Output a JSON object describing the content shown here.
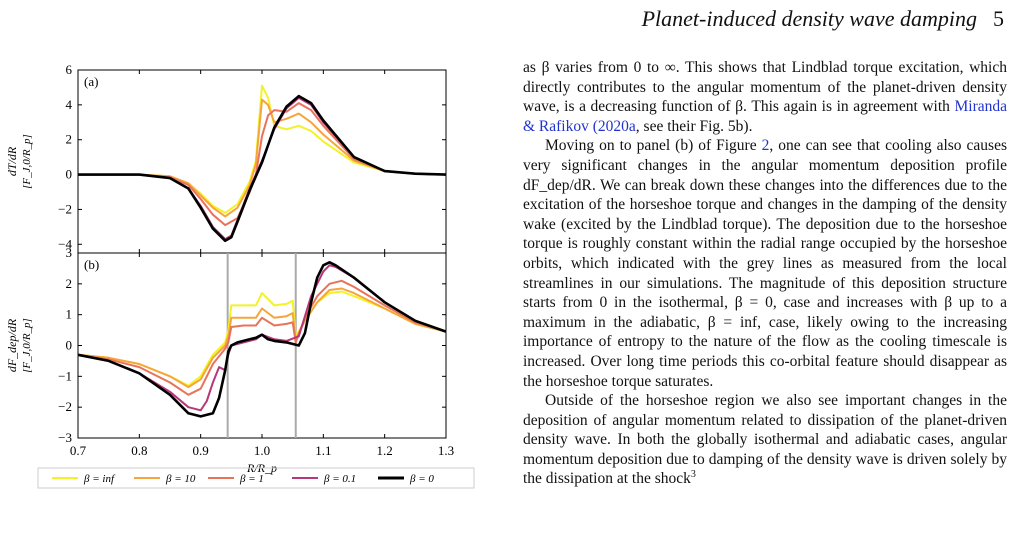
{
  "header": {
    "title": "Planet-induced density wave damping",
    "page": "5"
  },
  "body": {
    "p1": "as β varies from 0 to ∞. This shows that Lindblad torque excitation, which directly contributes to the angular momentum of the planet-driven density wave, is a decreasing function of β. This again is in agreement with ",
    "p1_link": "Miranda & Rafikov (2020a",
    "p1_end": ", see their Fig. 5b).",
    "p2_start": "Moving on to panel (b) of Figure ",
    "p2_link": "2",
    "p2": ", one can see that cooling also causes very significant changes in the angular momentum deposition profile dF_dep/dR. We can break down these changes into the differences due to the excitation of the horseshoe torque and changes in the damping of the density wake (excited by the Lindblad torque). The deposition due to the horseshoe torque is roughly constant within the radial range occupied by the horseshoe orbits, which indicated with the grey lines as measured from the local streamlines in our simulations. The magnitude of this deposition structure starts from 0 in the isothermal, β = 0, case and increases with β up to a maximum in the adiabatic, β = inf, case, likely owing to the increasing importance of entropy to the nature of the flow as the cooling timescale is increased. Over long time periods this co-orbital feature should disappear as the horseshoe torque saturates.",
    "p3": "Outside of the horseshoe region we also see important changes in the deposition of angular momentum related to dissipation of the planet-driven density wave. In both the globally isothermal and adiabatic cases, angular momentum deposition due to damping of the density wave is driven solely by the dissipation at the shock",
    "p3_sup": "3"
  },
  "chart_data": [
    {
      "type": "line",
      "panel_label": "(a)",
      "ylabel_top": "dT/dR",
      "ylabel_bottom": "[F_J,0/R_p]",
      "xlim": [
        0.7,
        1.3
      ],
      "ylim": [
        -4.5,
        6
      ],
      "yticks": [
        "6",
        "4",
        "2",
        "0",
        "−2",
        "−4"
      ],
      "series": [
        {
          "name": "β = inf",
          "color": "#f2f226",
          "x": [
            0.7,
            0.8,
            0.85,
            0.88,
            0.9,
            0.92,
            0.94,
            0.96,
            0.98,
            0.99,
            1.0,
            1.01,
            1.02,
            1.04,
            1.06,
            1.08,
            1.1,
            1.15,
            1.2,
            1.25,
            1.3
          ],
          "y": [
            0,
            0,
            -0.1,
            -0.5,
            -1.1,
            -1.8,
            -2.2,
            -1.7,
            -0.4,
            0.8,
            5.1,
            4.4,
            2.8,
            2.6,
            2.8,
            2.5,
            1.9,
            0.7,
            0.2,
            0.05,
            0
          ]
        },
        {
          "name": "β = 10",
          "color": "#f5a53c",
          "x": [
            0.7,
            0.8,
            0.85,
            0.88,
            0.9,
            0.92,
            0.94,
            0.96,
            0.98,
            0.99,
            1.0,
            1.01,
            1.02,
            1.04,
            1.06,
            1.08,
            1.1,
            1.15,
            1.2,
            1.25,
            1.3
          ],
          "y": [
            0,
            0,
            -0.1,
            -0.5,
            -1.2,
            -1.9,
            -2.4,
            -1.9,
            -0.6,
            0.6,
            4.3,
            4.0,
            3.0,
            3.2,
            3.5,
            3.0,
            2.3,
            0.8,
            0.2,
            0.05,
            0
          ]
        },
        {
          "name": "β = 1",
          "color": "#e8735a",
          "x": [
            0.7,
            0.8,
            0.85,
            0.88,
            0.9,
            0.92,
            0.94,
            0.96,
            0.98,
            0.99,
            1.0,
            1.01,
            1.02,
            1.04,
            1.06,
            1.08,
            1.1,
            1.15,
            1.2,
            1.25,
            1.3
          ],
          "y": [
            0,
            0,
            -0.15,
            -0.6,
            -1.4,
            -2.3,
            -2.9,
            -2.5,
            -1.0,
            0.0,
            2.2,
            3.4,
            3.7,
            3.6,
            4.1,
            3.7,
            2.8,
            0.9,
            0.2,
            0.05,
            0
          ]
        },
        {
          "name": "β = 0.1",
          "color": "#b73779",
          "x": [
            0.7,
            0.8,
            0.85,
            0.88,
            0.9,
            0.92,
            0.94,
            0.95,
            0.96,
            0.98,
            1.0,
            1.02,
            1.04,
            1.06,
            1.08,
            1.1,
            1.15,
            1.2,
            1.25,
            1.3
          ],
          "y": [
            0,
            0,
            -0.2,
            -0.8,
            -1.8,
            -3.0,
            -3.7,
            -3.5,
            -2.6,
            -0.8,
            0.8,
            2.6,
            3.8,
            4.4,
            4.0,
            3.0,
            1.0,
            0.2,
            0.05,
            0
          ]
        },
        {
          "name": "β = 0",
          "color": "#000000",
          "x": [
            0.7,
            0.8,
            0.85,
            0.88,
            0.9,
            0.92,
            0.94,
            0.95,
            0.96,
            0.98,
            1.0,
            1.02,
            1.04,
            1.06,
            1.08,
            1.1,
            1.15,
            1.2,
            1.25,
            1.3
          ],
          "y": [
            0,
            0,
            -0.2,
            -0.8,
            -1.9,
            -3.1,
            -3.8,
            -3.6,
            -2.7,
            -0.9,
            0.7,
            2.7,
            3.9,
            4.5,
            4.1,
            3.1,
            1.0,
            0.2,
            0.05,
            0
          ]
        }
      ]
    },
    {
      "type": "line",
      "panel_label": "(b)",
      "ylabel_top": "dF_dep/dR",
      "ylabel_bottom": "[F_J,0/R_p]",
      "xlabel": "R/R_p",
      "xlim": [
        0.7,
        1.3
      ],
      "ylim": [
        -3,
        3
      ],
      "xticks": [
        "0.7",
        "0.8",
        "0.9",
        "1.0",
        "1.1",
        "1.2",
        "1.3"
      ],
      "yticks": [
        "3",
        "2",
        "1",
        "0",
        "−1",
        "−2",
        "−3"
      ],
      "vlines": [
        0.944,
        1.055
      ],
      "series": [
        {
          "name": "β = inf",
          "color": "#f2f226",
          "x": [
            0.7,
            0.75,
            0.8,
            0.85,
            0.88,
            0.9,
            0.92,
            0.94,
            0.945,
            0.95,
            0.97,
            0.99,
            1.0,
            1.02,
            1.04,
            1.05,
            1.055,
            1.07,
            1.09,
            1.11,
            1.13,
            1.15,
            1.2,
            1.25,
            1.3
          ],
          "y": [
            -0.3,
            -0.4,
            -0.6,
            -1.0,
            -1.3,
            -1.0,
            -0.3,
            0.1,
            0.5,
            1.3,
            1.3,
            1.3,
            1.7,
            1.3,
            1.35,
            1.45,
            0.3,
            0.8,
            1.4,
            1.7,
            1.75,
            1.6,
            1.2,
            0.7,
            0.45
          ]
        },
        {
          "name": "β = 10",
          "color": "#f5a53c",
          "x": [
            0.7,
            0.75,
            0.8,
            0.85,
            0.88,
            0.9,
            0.92,
            0.94,
            0.945,
            0.95,
            0.97,
            0.99,
            1.0,
            1.02,
            1.04,
            1.05,
            1.055,
            1.07,
            1.09,
            1.11,
            1.13,
            1.15,
            1.2,
            1.25,
            1.3
          ],
          "y": [
            -0.3,
            -0.4,
            -0.6,
            -1.0,
            -1.35,
            -1.1,
            -0.4,
            0.0,
            0.3,
            0.9,
            0.9,
            0.9,
            1.2,
            0.9,
            0.95,
            1.05,
            0.2,
            0.8,
            1.4,
            1.8,
            1.85,
            1.7,
            1.2,
            0.7,
            0.45
          ]
        },
        {
          "name": "β = 1",
          "color": "#e8735a",
          "x": [
            0.7,
            0.75,
            0.8,
            0.85,
            0.88,
            0.9,
            0.92,
            0.94,
            0.945,
            0.95,
            0.97,
            0.99,
            1.0,
            1.02,
            1.04,
            1.05,
            1.055,
            1.07,
            1.09,
            1.11,
            1.13,
            1.15,
            1.2,
            1.25,
            1.3
          ],
          "y": [
            -0.3,
            -0.45,
            -0.7,
            -1.2,
            -1.6,
            -1.4,
            -0.6,
            -0.1,
            0.1,
            0.6,
            0.65,
            0.65,
            0.9,
            0.65,
            0.7,
            0.75,
            0.1,
            0.9,
            1.6,
            2.0,
            2.1,
            1.9,
            1.3,
            0.75,
            0.45
          ]
        },
        {
          "name": "β = 0.1",
          "color": "#b73779",
          "x": [
            0.7,
            0.75,
            0.8,
            0.85,
            0.88,
            0.9,
            0.91,
            0.92,
            0.93,
            0.94,
            0.945,
            0.95,
            0.97,
            0.99,
            1.0,
            1.02,
            1.04,
            1.06,
            1.08,
            1.1,
            1.11,
            1.12,
            1.15,
            1.2,
            1.25,
            1.3
          ],
          "y": [
            -0.3,
            -0.5,
            -0.9,
            -1.5,
            -2.0,
            -2.1,
            -1.8,
            -1.2,
            -0.7,
            -0.8,
            -0.3,
            0.0,
            0.1,
            0.2,
            0.35,
            0.2,
            0.15,
            0.3,
            1.6,
            2.4,
            2.6,
            2.55,
            2.2,
            1.4,
            0.8,
            0.45
          ]
        },
        {
          "name": "β = 0",
          "color": "#000000",
          "x": [
            0.7,
            0.75,
            0.8,
            0.85,
            0.88,
            0.9,
            0.92,
            0.93,
            0.94,
            0.945,
            0.95,
            0.96,
            0.98,
            0.99,
            1.0,
            1.01,
            1.02,
            1.04,
            1.06,
            1.07,
            1.08,
            1.09,
            1.1,
            1.11,
            1.12,
            1.15,
            1.2,
            1.25,
            1.3
          ],
          "y": [
            -0.3,
            -0.5,
            -0.9,
            -1.6,
            -2.2,
            -2.3,
            -2.2,
            -1.7,
            -0.8,
            -0.2,
            0.0,
            0.1,
            0.2,
            0.25,
            0.35,
            0.2,
            0.15,
            0.1,
            0.0,
            0.4,
            1.4,
            2.2,
            2.6,
            2.7,
            2.6,
            2.2,
            1.4,
            0.8,
            0.45
          ]
        }
      ]
    }
  ],
  "legend": {
    "items": [
      "β = inf",
      "β = 10",
      "β = 1",
      "β = 0.1",
      "β = 0"
    ],
    "colors": [
      "#f2f226",
      "#f5a53c",
      "#e8735a",
      "#b73779",
      "#000000"
    ]
  }
}
